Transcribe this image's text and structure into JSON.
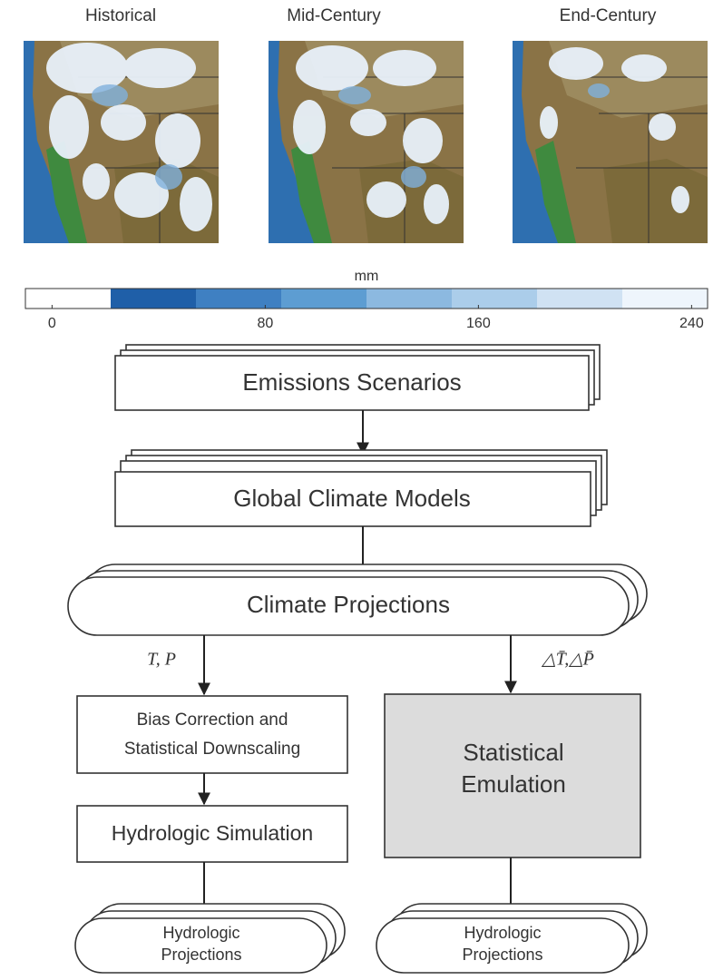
{
  "maps": [
    {
      "title": "Historical"
    },
    {
      "title": "Mid-Century"
    },
    {
      "title": "End-Century"
    }
  ],
  "colorbar": {
    "label": "mm",
    "lim": [
      -10,
      246
    ],
    "ticks": [
      0,
      80,
      160,
      240
    ],
    "colors": [
      "#ffffff",
      "#1f5fa8",
      "#3f80c2",
      "#5d9dd2",
      "#8cb9e0",
      "#abcdea",
      "#d0e2f3",
      "#eef5fc"
    ]
  },
  "nodes": [
    {
      "label": "Emissions Scenarios"
    },
    {
      "label": "Global Climate Models"
    },
    {
      "label": "Climate Projections"
    },
    {
      "label": [
        "Bias Correction and",
        "Statistical Downscaling"
      ]
    },
    {
      "label": "Hydrologic Simulation"
    },
    {
      "label": [
        "Hydrologic",
        "Projections"
      ]
    },
    {
      "label": [
        "Statistical",
        "Emulation"
      ]
    },
    {
      "label": [
        "Hydrologic",
        "Projections"
      ]
    }
  ],
  "edges": [
    {
      "label": "T, P"
    },
    {
      "label": "△T̄,△P̄"
    }
  ]
}
